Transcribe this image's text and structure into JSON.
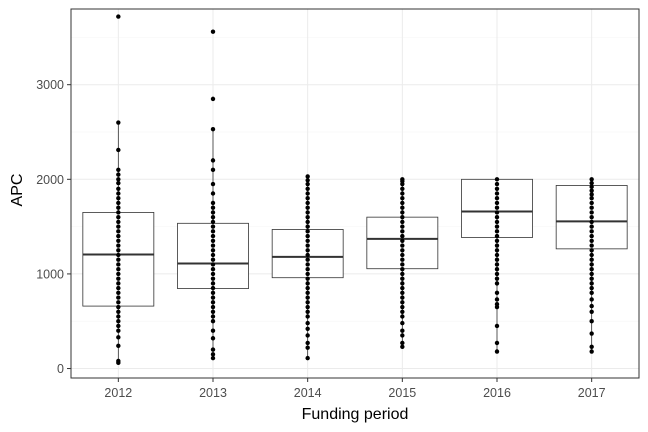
{
  "chart_data": {
    "type": "boxplot",
    "xlabel": "Funding period",
    "ylabel": "APC",
    "ylim": [
      -100,
      3800
    ],
    "y_ticks": [
      0,
      1000,
      2000,
      3000
    ],
    "y_minor_ticks": [
      500,
      1500,
      2500,
      3500
    ],
    "grid": true,
    "theme": "bw",
    "categories": [
      "2012",
      "2013",
      "2014",
      "2015",
      "2016",
      "2017"
    ],
    "boxes": [
      {
        "category": "2012",
        "q1": 660,
        "median": 1205,
        "q3": 1650,
        "whisker_low": 70,
        "whisker_high": 2600,
        "points": [
          3720,
          2600,
          2310,
          2100,
          2050,
          2000,
          1960,
          1900,
          1850,
          1800,
          1750,
          1700,
          1650,
          1600,
          1550,
          1500,
          1450,
          1400,
          1350,
          1300,
          1250,
          1200,
          1150,
          1100,
          1050,
          1000,
          950,
          900,
          850,
          800,
          750,
          700,
          650,
          600,
          550,
          500,
          450,
          400,
          330,
          240,
          80,
          60
        ]
      },
      {
        "category": "2013",
        "q1": 845,
        "median": 1110,
        "q3": 1535,
        "whisker_low": 110,
        "whisker_high": 2540,
        "points": [
          3560,
          2850,
          2530,
          2200,
          2100,
          1950,
          1850,
          1750,
          1700,
          1650,
          1600,
          1550,
          1500,
          1450,
          1400,
          1350,
          1300,
          1250,
          1200,
          1150,
          1100,
          1050,
          1000,
          950,
          900,
          850,
          800,
          750,
          700,
          650,
          600,
          550,
          500,
          400,
          320,
          200,
          150,
          110
        ]
      },
      {
        "category": "2014",
        "q1": 960,
        "median": 1180,
        "q3": 1470,
        "whisker_low": 110,
        "whisker_high": 2030,
        "points": [
          2030,
          1990,
          1950,
          1900,
          1850,
          1800,
          1750,
          1700,
          1650,
          1600,
          1550,
          1500,
          1450,
          1400,
          1350,
          1300,
          1250,
          1200,
          1150,
          1100,
          1050,
          1000,
          950,
          900,
          850,
          800,
          750,
          700,
          650,
          600,
          550,
          480,
          420,
          350,
          270,
          220,
          110
        ]
      },
      {
        "category": "2015",
        "q1": 1055,
        "median": 1370,
        "q3": 1600,
        "whisker_low": 230,
        "whisker_high": 2000,
        "points": [
          2000,
          1980,
          1950,
          1900,
          1850,
          1800,
          1750,
          1700,
          1650,
          1600,
          1550,
          1500,
          1450,
          1400,
          1350,
          1300,
          1250,
          1200,
          1150,
          1100,
          1050,
          1000,
          950,
          900,
          850,
          800,
          750,
          700,
          650,
          600,
          550,
          480,
          400,
          350,
          270,
          230
        ]
      },
      {
        "category": "2016",
        "q1": 1385,
        "median": 1660,
        "q3": 2000,
        "whisker_low": 180,
        "whisker_high": 2000,
        "points": [
          2000,
          1950,
          1900,
          1850,
          1800,
          1750,
          1700,
          1650,
          1600,
          1550,
          1500,
          1450,
          1400,
          1350,
          1300,
          1250,
          1200,
          1150,
          1100,
          1050,
          1000,
          950,
          900,
          800,
          730,
          680,
          650,
          450,
          270,
          180
        ]
      },
      {
        "category": "2017",
        "q1": 1265,
        "median": 1555,
        "q3": 1935,
        "whisker_low": 180,
        "whisker_high": 2000,
        "points": [
          2000,
          1960,
          1920,
          1880,
          1840,
          1800,
          1750,
          1700,
          1650,
          1600,
          1550,
          1500,
          1450,
          1400,
          1350,
          1300,
          1250,
          1200,
          1150,
          1100,
          1050,
          1000,
          950,
          900,
          850,
          800,
          730,
          660,
          600,
          500,
          370,
          230,
          180
        ]
      }
    ],
    "colors": {
      "box_stroke": "#333333",
      "point": "#000000",
      "grid_major": "#ebebeb",
      "grid_minor": "#f5f5f5",
      "panel_border": "#333333"
    }
  }
}
